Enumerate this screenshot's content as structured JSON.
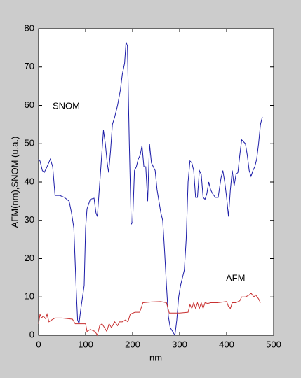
{
  "chart_data": {
    "type": "line",
    "xlabel": "nm",
    "ylabel": "AFM(nm),SNOM (u.a.)",
    "annotations": [
      "SNOM",
      "AFM"
    ],
    "xlim": [
      0,
      500
    ],
    "xticks": [
      0,
      100,
      200,
      300,
      400,
      500
    ],
    "ylim": [
      0,
      80
    ],
    "yticks": [
      0,
      10,
      20,
      30,
      40,
      50,
      60,
      70,
      80
    ],
    "grid": false,
    "series": [
      {
        "name": "SNOM",
        "color": "#1c1ca8",
        "x": [
          0,
          3,
          8,
          12,
          18,
          25,
          30,
          35,
          45,
          55,
          65,
          70,
          75,
          80,
          83,
          86,
          90,
          97,
          100,
          103,
          110,
          118,
          122,
          125,
          132,
          138,
          142,
          146,
          149,
          153,
          157,
          162,
          168,
          174,
          178,
          183,
          186,
          189,
          193,
          197,
          200,
          204,
          208,
          212,
          216,
          220,
          224,
          228,
          232,
          236,
          240,
          244,
          248,
          252,
          256,
          260,
          264,
          268,
          272,
          276,
          280,
          285,
          290,
          294,
          298,
          302,
          306,
          310,
          314,
          318,
          322,
          326,
          330,
          334,
          338,
          342,
          346,
          350,
          354,
          358,
          362,
          366,
          370,
          376,
          382,
          388,
          392,
          396,
          400,
          404,
          408,
          412,
          416,
          420,
          424,
          428,
          432,
          436,
          440,
          444,
          448,
          452,
          456,
          460,
          464,
          468,
          472,
          476
        ],
        "values": [
          46,
          45.5,
          43,
          42.5,
          44,
          46,
          44,
          36.5,
          36.5,
          36,
          35,
          32,
          28,
          12,
          4,
          3,
          7,
          13,
          28,
          33,
          35.5,
          35.8,
          32,
          31,
          43,
          53.5,
          50,
          45,
          42.5,
          48,
          55,
          57,
          60,
          64,
          68,
          71,
          76.5,
          75.5,
          50,
          29,
          29.5,
          43,
          44,
          46,
          47,
          49.5,
          44,
          44,
          35,
          50,
          45,
          44,
          43,
          38,
          35,
          32,
          30,
          22,
          13,
          5,
          2,
          1,
          0,
          4,
          10,
          13,
          15,
          17,
          25,
          40,
          45.5,
          45,
          43,
          36,
          36,
          43,
          42,
          36,
          35.5,
          37,
          40,
          38,
          37,
          36,
          36,
          41,
          43,
          40,
          36,
          31,
          38,
          43,
          39,
          42,
          42.5,
          47,
          51,
          50.5,
          50,
          47,
          43,
          41.5,
          43,
          44,
          46,
          50,
          55,
          57
        ]
      },
      {
        "name": "AFM",
        "color": "#c83030",
        "x": [
          0,
          3,
          6,
          10,
          15,
          18,
          22,
          28,
          35,
          50,
          72,
          78,
          90,
          100,
          103,
          110,
          120,
          125,
          130,
          135,
          140,
          145,
          150,
          155,
          162,
          168,
          172,
          178,
          185,
          190,
          195,
          205,
          215,
          222,
          240,
          260,
          272,
          278,
          300,
          318,
          322,
          326,
          330,
          334,
          338,
          342,
          346,
          350,
          354,
          360,
          366,
          380,
          400,
          404,
          408,
          412,
          420,
          428,
          432,
          440,
          448,
          452,
          458,
          462,
          468,
          472
        ],
        "values": [
          3,
          5.5,
          4.5,
          5,
          4.3,
          5.5,
          3.5,
          4,
          4.5,
          4.5,
          4.2,
          3,
          3,
          3,
          1,
          1.5,
          1,
          0,
          2.5,
          3,
          2,
          1,
          3,
          2,
          3.5,
          2.5,
          3.5,
          3.5,
          4,
          3.5,
          5.5,
          6,
          6,
          8.5,
          8.7,
          8.8,
          8.5,
          5.8,
          5.8,
          6,
          8,
          7,
          8.5,
          7,
          8.5,
          7,
          8.5,
          7,
          8.5,
          8.3,
          8.5,
          8.5,
          8.8,
          7.5,
          7,
          8.5,
          8.5,
          9,
          10,
          10,
          10.5,
          11,
          10,
          10.5,
          9.5,
          8.5
        ]
      }
    ]
  }
}
